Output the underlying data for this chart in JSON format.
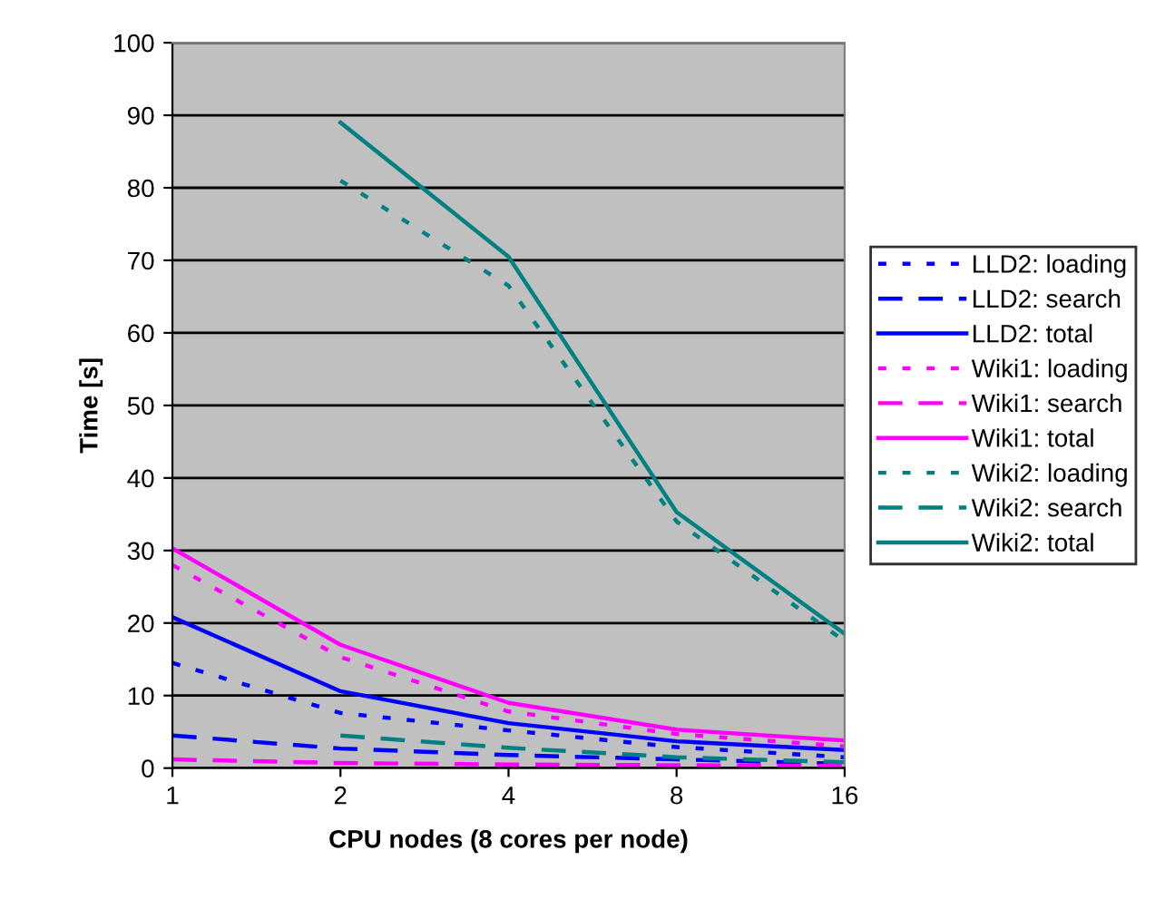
{
  "chart_data": {
    "type": "line",
    "xlabel": "CPU nodes (8 cores per node)",
    "ylabel": "Time [s]",
    "categories": [
      "1",
      "2",
      "4",
      "8",
      "16"
    ],
    "ylim": [
      0,
      100
    ],
    "yticks": [
      0,
      10,
      20,
      30,
      40,
      50,
      60,
      70,
      80,
      90,
      100
    ],
    "grid": "y",
    "legend": "right",
    "marker": "none",
    "series": [
      {
        "name": "LLD2: loading",
        "color": "#0000ff",
        "line_style": "dotted",
        "values": [
          14.5,
          7.6,
          5.2,
          2.9,
          1.5
        ]
      },
      {
        "name": "LLD2: search",
        "color": "#0000ff",
        "line_style": "dashed",
        "values": [
          4.5,
          2.7,
          1.8,
          1.2,
          0.6
        ]
      },
      {
        "name": "LLD2: total",
        "color": "#0000ff",
        "line_style": "solid",
        "values": [
          20.8,
          10.6,
          6.2,
          3.7,
          2.5
        ]
      },
      {
        "name": "Wiki1: loading",
        "color": "#ff00ff",
        "line_style": "dotted",
        "values": [
          28,
          15.3,
          7.8,
          4.7,
          3
        ]
      },
      {
        "name": "Wiki1: search",
        "color": "#ff00ff",
        "line_style": "dashed",
        "values": [
          1.2,
          0.7,
          0.5,
          0.4,
          0.3
        ]
      },
      {
        "name": "Wiki1: total",
        "color": "#ff00ff",
        "line_style": "solid",
        "values": [
          30.3,
          17,
          9,
          5.3,
          3.8
        ]
      },
      {
        "name": "Wiki2: loading",
        "color": "#008080",
        "line_style": "dotted",
        "values": [
          null,
          81,
          66.5,
          34,
          17.5
        ]
      },
      {
        "name": "Wiki2: search",
        "color": "#008080",
        "line_style": "dashed",
        "values": [
          null,
          4.5,
          2.8,
          1.5,
          0.8
        ]
      },
      {
        "name": "Wiki2: total",
        "color": "#008080",
        "line_style": "solid",
        "values": [
          null,
          89,
          70.5,
          35.3,
          18.5
        ]
      }
    ]
  }
}
